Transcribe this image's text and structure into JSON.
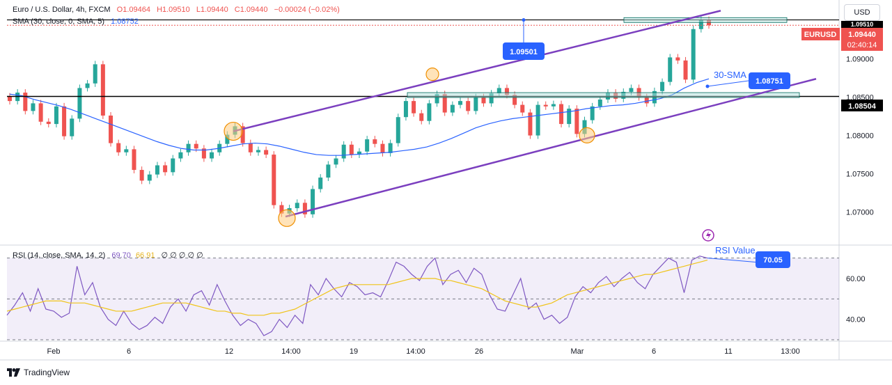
{
  "header": {
    "symbol": "Euro / U.S. Dollar, 4h, FXCM",
    "open": "O1.09464",
    "high": "H1.09510",
    "low": "L1.09440",
    "close": "C1.09440",
    "change": "−0.00024 (−0.02%)",
    "sma_label": "SMA (30, close, 0, SMA, 5)",
    "sma_value": "1.08752"
  },
  "rsi_header": {
    "label": "RSI (14, close, SMA, 14, 2)",
    "value1": "69.70",
    "value2": "66.91",
    "extra": "∅ ∅   ∅ ∅ ∅"
  },
  "currency_button": "USD",
  "branding": "TradingView",
  "colors": {
    "bull": "#26a69a",
    "bear": "#ef5350",
    "sma": "#2962ff",
    "channel": "#7b3fbf",
    "rsi": "#7e57c2",
    "rsi_ma": "#f0c419",
    "label_blue": "#2962ff"
  },
  "chart_data": {
    "type": "candlestick",
    "price_axis": {
      "ticks": [
        "1.09000",
        "1.08500",
        "1.08000",
        "1.07500",
        "1.07000"
      ],
      "tick_values": [
        1.09,
        1.085,
        1.08,
        1.075,
        1.07
      ],
      "range": [
        1.0665,
        1.0977
      ]
    },
    "rsi_axis": {
      "ticks": [
        "60.00",
        "40.00"
      ],
      "tick_values": [
        60,
        40
      ],
      "range": [
        30,
        75
      ],
      "bands": [
        70,
        50,
        30
      ]
    },
    "time_axis": [
      "Feb",
      "6",
      "12",
      "14:00",
      "19",
      "14:00",
      "26",
      "Mar",
      "6",
      "11",
      "13:00"
    ],
    "price_labels": {
      "symbol": "EURUSD",
      "last_price": "1.09440",
      "countdown": "02:40:14",
      "resistance_level": "1.08504",
      "top_level": "1.09510"
    },
    "annotations": {
      "peak_price": "1.09501",
      "sma_value": "1.08751",
      "sma_label": "30-SMA",
      "rsi_value": "70.05",
      "rsi_label": "RSI Value"
    },
    "horizontal_lines": [
      1.0851,
      1.0951
    ],
    "channel": {
      "upper": [
        [
          1.08055,
          1.0963
        ]
      ],
      "lower": [
        [
          1.0694,
          1.0874
        ]
      ]
    },
    "sma_path": [
      1.0854,
      1.0852,
      1.0847,
      1.0843,
      1.0839,
      1.0834,
      1.0828,
      1.0822,
      1.0816,
      1.081,
      1.0804,
      1.0798,
      1.0792,
      1.0787,
      1.0783,
      1.0781,
      1.0781,
      1.0783,
      1.0786,
      1.0789,
      1.079,
      1.0789,
      1.0786,
      1.0782,
      1.0778,
      1.0775,
      1.0774,
      1.0774,
      1.0775,
      1.0776,
      1.0777,
      1.0778,
      1.078,
      1.0782,
      1.0785,
      1.079,
      1.0796,
      1.0803,
      1.081,
      1.0815,
      1.0819,
      1.0822,
      1.0824,
      1.0826,
      1.0828,
      1.083,
      1.0832,
      1.0835,
      1.0837,
      1.0839,
      1.084,
      1.0842,
      1.0845,
      1.0848,
      1.0853,
      1.0862,
      1.0869,
      1.0874
    ],
    "closes": [
      1.0845,
      1.0856,
      1.0832,
      1.0842,
      1.0818,
      1.0815,
      1.0838,
      1.0799,
      1.0822,
      1.0862,
      1.0868,
      1.0893,
      1.0826,
      1.079,
      1.0778,
      1.0782,
      1.0755,
      1.0741,
      1.0749,
      1.0761,
      1.0752,
      1.077,
      1.0778,
      1.0789,
      1.0783,
      1.077,
      1.0778,
      1.0789,
      1.0801,
      1.0812,
      1.079,
      1.0778,
      1.0781,
      1.0775,
      1.0709,
      1.0698,
      1.0705,
      1.0712,
      1.0697,
      1.073,
      1.0745,
      1.0762,
      1.077,
      1.0788,
      1.0775,
      1.0779,
      1.0795,
      1.0789,
      1.0777,
      1.079,
      1.0824,
      1.0845,
      1.0829,
      1.0819,
      1.0842,
      1.0854,
      1.083,
      1.084,
      1.0845,
      1.0832,
      1.085,
      1.0842,
      1.0855,
      1.0862,
      1.0853,
      1.084,
      1.083,
      1.08,
      1.084,
      1.0838,
      1.0841,
      1.0815,
      1.0835,
      1.0802,
      1.082,
      1.0838,
      1.0847,
      1.0856,
      1.0848,
      1.0857,
      1.0862,
      1.085,
      1.0842,
      1.0858,
      1.087,
      1.0902,
      1.0898,
      1.0873,
      1.0939,
      1.0951,
      1.0944
    ],
    "rsi_path": [
      42,
      47,
      53,
      44,
      55,
      45,
      44,
      41,
      43,
      66,
      52,
      58,
      46,
      40,
      37,
      44,
      38,
      35,
      37,
      41,
      38,
      46,
      50,
      44,
      52,
      54,
      47,
      57,
      49,
      42,
      37,
      40,
      38,
      32,
      34,
      40,
      36,
      42,
      38,
      57,
      52,
      60,
      55,
      51,
      58,
      56,
      52,
      53,
      51,
      59,
      68,
      66,
      62,
      59,
      66,
      70,
      57,
      62,
      64,
      58,
      65,
      62,
      52,
      45,
      44,
      52,
      60,
      45,
      48,
      40,
      42,
      38,
      41,
      51,
      56,
      53,
      58,
      61,
      56,
      60,
      63,
      58,
      55,
      62,
      66,
      70,
      68,
      53,
      69,
      71,
      70
    ],
    "rsi_ma_path": [
      44,
      45,
      46,
      47,
      48,
      49,
      49,
      49,
      48,
      48,
      48,
      47,
      46,
      45,
      44,
      44,
      44,
      45,
      46,
      47,
      48,
      48,
      48,
      48,
      47,
      46,
      45,
      44,
      44,
      43,
      43,
      42,
      42,
      42,
      43,
      43,
      44,
      45,
      47,
      49,
      51,
      53,
      55,
      56,
      57,
      57,
      57,
      57,
      57,
      57,
      58,
      59,
      60,
      60,
      60,
      60,
      59,
      59,
      58,
      57,
      56,
      55,
      53,
      51,
      49,
      48,
      47,
      46,
      46,
      47,
      48,
      50,
      52,
      53,
      54,
      55,
      56,
      57,
      58,
      59,
      60,
      61,
      62,
      62,
      63,
      64,
      65,
      66,
      67,
      68,
      69
    ]
  }
}
